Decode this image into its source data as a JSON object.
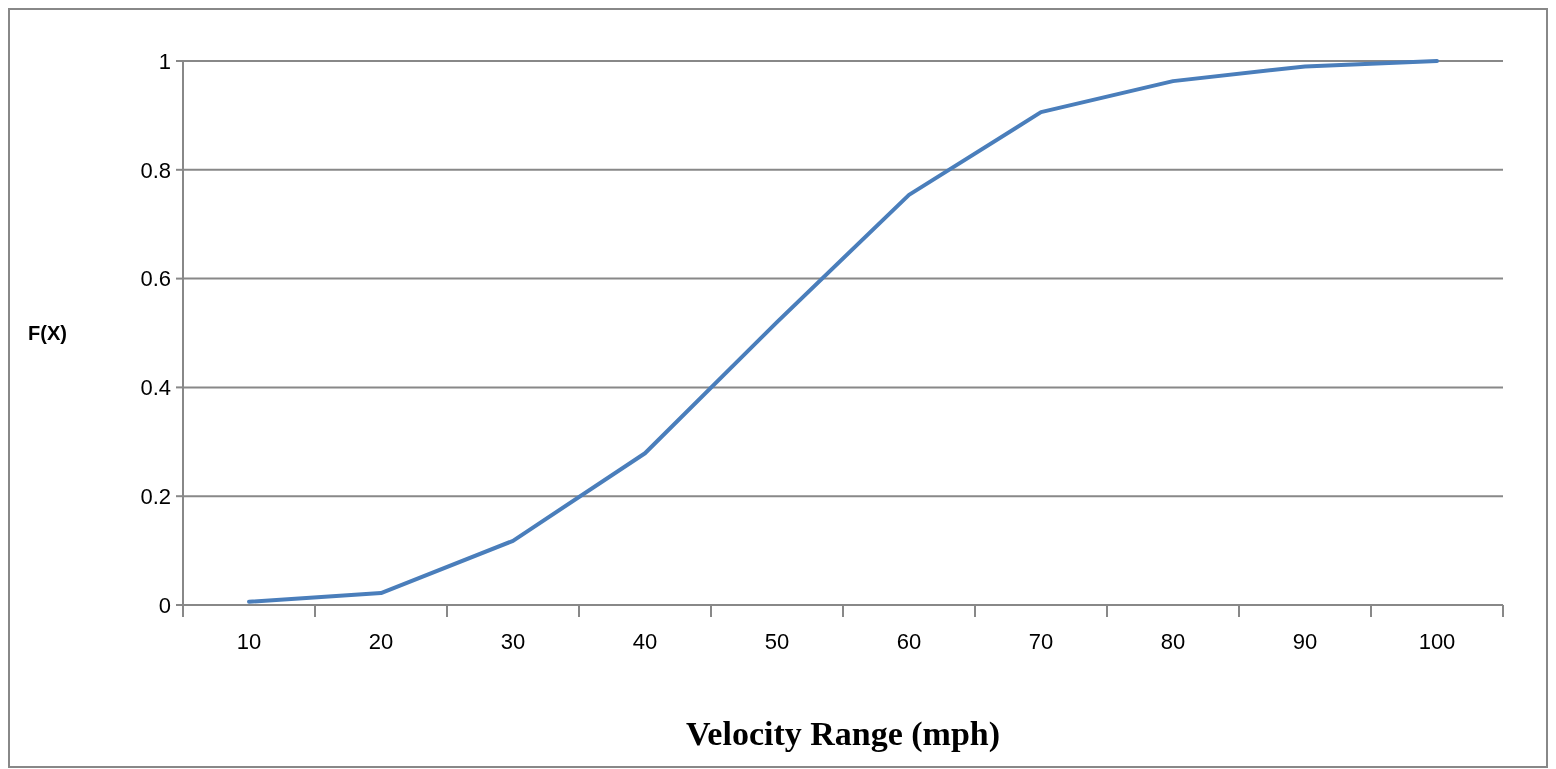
{
  "chart_data": {
    "type": "line",
    "xlabel": "Velocity Range (mph)",
    "ylabel": "F(X)",
    "categories": [
      "10",
      "20",
      "30",
      "40",
      "50",
      "60",
      "70",
      "80",
      "90",
      "100"
    ],
    "series": [
      {
        "color": "#4a7ebb",
        "values": [
          0.006,
          0.022,
          0.118,
          0.279,
          0.52,
          0.754,
          0.906,
          0.963,
          0.99,
          1.0
        ]
      }
    ],
    "ylim": [
      0,
      1
    ],
    "yticks": [
      0,
      0.2,
      0.4,
      0.6,
      0.8,
      1
    ],
    "grid": "y",
    "marker": "none",
    "line_style": "solid"
  }
}
